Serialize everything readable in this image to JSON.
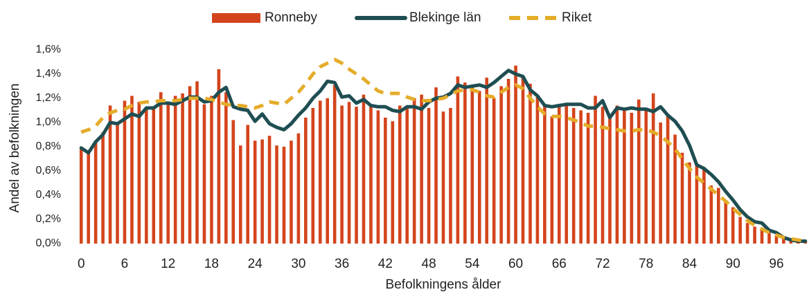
{
  "chart_data": {
    "type": "bar",
    "x_label": "Befolkningens ålder",
    "y_label": "Andel av befolkningen",
    "categories": [
      "0",
      null,
      null,
      null,
      null,
      null,
      "6",
      null,
      null,
      null,
      null,
      null,
      "12",
      null,
      null,
      null,
      null,
      null,
      "18",
      null,
      null,
      null,
      null,
      null,
      "24",
      null,
      null,
      null,
      null,
      null,
      "30",
      null,
      null,
      null,
      null,
      null,
      "36",
      null,
      null,
      null,
      null,
      null,
      "42",
      null,
      null,
      null,
      null,
      null,
      "48",
      null,
      null,
      null,
      null,
      null,
      "54",
      null,
      null,
      null,
      null,
      null,
      "60",
      null,
      null,
      null,
      null,
      null,
      "66",
      null,
      null,
      null,
      null,
      null,
      "72",
      null,
      null,
      null,
      null,
      null,
      "78",
      null,
      null,
      null,
      null,
      null,
      "84",
      null,
      null,
      null,
      null,
      null,
      "90",
      null,
      null,
      null,
      null,
      null,
      "96",
      null,
      null,
      null,
      null
    ],
    "ylim": [
      0,
      1.6
    ],
    "yticks": [
      {
        "value": 0,
        "label": "0,0%"
      },
      {
        "value": 0.2,
        "label": "0,2%"
      },
      {
        "value": 0.4,
        "label": "0,4%"
      },
      {
        "value": 0.6,
        "label": "0,6%"
      },
      {
        "value": 0.8,
        "label": "0,8%"
      },
      {
        "value": 1.0,
        "label": "1,0%"
      },
      {
        "value": 1.2,
        "label": "1,2%"
      },
      {
        "value": 1.4,
        "label": "1,4%"
      },
      {
        "value": 1.6,
        "label": "1,6%"
      }
    ],
    "grid": false,
    "legend": "top",
    "series": [
      {
        "name": "Ronneby",
        "type": "bar",
        "color": "#d4441c",
        "values": [
          0.78,
          0.76,
          0.85,
          0.92,
          1.14,
          1.0,
          1.18,
          1.22,
          1.17,
          1.12,
          1.12,
          1.25,
          1.17,
          1.22,
          1.24,
          1.3,
          1.34,
          1.15,
          1.22,
          1.44,
          1.25,
          1.02,
          0.81,
          0.98,
          0.85,
          0.86,
          0.89,
          0.81,
          0.8,
          0.85,
          0.91,
          1.04,
          1.12,
          1.18,
          1.2,
          1.31,
          1.14,
          1.17,
          1.13,
          1.23,
          1.14,
          1.1,
          1.04,
          1.01,
          1.14,
          1.12,
          1.2,
          1.23,
          1.12,
          1.29,
          1.09,
          1.12,
          1.38,
          1.33,
          1.3,
          1.26,
          1.37,
          1.2,
          1.3,
          1.36,
          1.47,
          1.38,
          1.32,
          1.22,
          1.15,
          1.05,
          1.13,
          1.15,
          1.12,
          1.1,
          1.08,
          1.22,
          1.13,
          1.05,
          1.14,
          1.12,
          1.08,
          1.19,
          1.1,
          1.24,
          1.0,
          1.07,
          0.9,
          0.75,
          0.67,
          0.66,
          0.63,
          0.48,
          0.46,
          0.36,
          0.3,
          0.22,
          0.17,
          0.14,
          0.12,
          0.09,
          0.07,
          0.05,
          0.04,
          0.03,
          0.02
        ]
      },
      {
        "name": "Blekinge län",
        "type": "line",
        "dashed": false,
        "color": "#1f4e52",
        "values": [
          0.79,
          0.75,
          0.84,
          0.9,
          1.0,
          0.99,
          1.03,
          1.07,
          1.05,
          1.12,
          1.12,
          1.16,
          1.16,
          1.15,
          1.18,
          1.21,
          1.21,
          1.17,
          1.18,
          1.25,
          1.29,
          1.13,
          1.11,
          1.1,
          1.01,
          1.07,
          0.99,
          0.96,
          0.94,
          0.99,
          1.06,
          1.12,
          1.2,
          1.26,
          1.34,
          1.33,
          1.21,
          1.22,
          1.16,
          1.19,
          1.14,
          1.13,
          1.13,
          1.1,
          1.09,
          1.13,
          1.13,
          1.11,
          1.17,
          1.2,
          1.21,
          1.24,
          1.31,
          1.29,
          1.3,
          1.31,
          1.29,
          1.33,
          1.38,
          1.43,
          1.4,
          1.38,
          1.27,
          1.22,
          1.14,
          1.13,
          1.14,
          1.15,
          1.15,
          1.15,
          1.12,
          1.12,
          1.18,
          1.04,
          1.12,
          1.11,
          1.12,
          1.11,
          1.11,
          1.09,
          1.13,
          1.06,
          1.01,
          0.93,
          0.81,
          0.65,
          0.62,
          0.57,
          0.51,
          0.43,
          0.36,
          0.28,
          0.22,
          0.18,
          0.17,
          0.11,
          0.09,
          0.05,
          0.03,
          0.02,
          0.02
        ]
      },
      {
        "name": "Riket",
        "type": "line",
        "dashed": true,
        "color": "#e5ac2a",
        "values": [
          0.92,
          0.94,
          0.97,
          1.04,
          1.08,
          1.1,
          1.11,
          1.14,
          1.16,
          1.17,
          1.17,
          1.18,
          1.18,
          1.18,
          1.19,
          1.2,
          1.2,
          1.2,
          1.19,
          1.17,
          1.15,
          1.14,
          1.14,
          1.13,
          1.12,
          1.14,
          1.17,
          1.16,
          1.15,
          1.2,
          1.25,
          1.32,
          1.4,
          1.46,
          1.49,
          1.52,
          1.49,
          1.44,
          1.4,
          1.36,
          1.31,
          1.26,
          1.24,
          1.24,
          1.24,
          1.21,
          1.19,
          1.18,
          1.18,
          1.19,
          1.2,
          1.23,
          1.26,
          1.27,
          1.27,
          1.25,
          1.22,
          1.21,
          1.25,
          1.29,
          1.31,
          1.28,
          1.2,
          1.13,
          1.07,
          1.05,
          1.05,
          1.04,
          1.02,
          1.0,
          0.97,
          0.97,
          0.96,
          0.95,
          0.94,
          0.93,
          0.93,
          0.94,
          0.94,
          0.92,
          0.89,
          0.84,
          0.78,
          0.7,
          0.62,
          0.55,
          0.5,
          0.45,
          0.4,
          0.35,
          0.29,
          0.24,
          0.19,
          0.15,
          0.12,
          0.09,
          0.07,
          0.05,
          0.04,
          0.03,
          0.02
        ]
      }
    ]
  }
}
